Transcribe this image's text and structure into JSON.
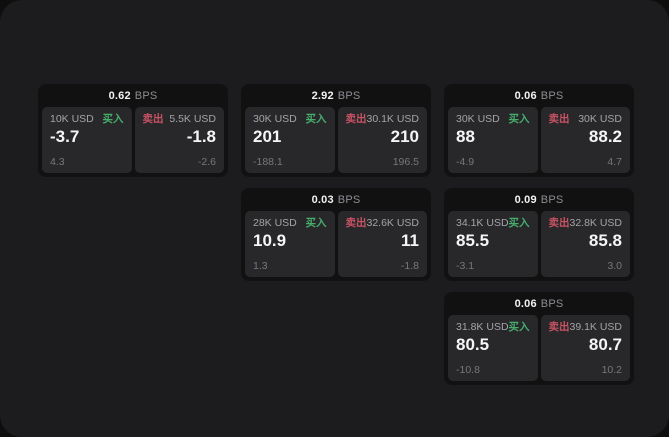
{
  "labels": {
    "bps_unit": "BPS",
    "buy": "买入",
    "sell": "卖出"
  },
  "colors": {
    "surface": "#1c1c1e",
    "card_background": "#111112",
    "panel_background": "#28282a",
    "buy_green": "#46ad6d",
    "sell_red": "#c75264"
  },
  "cards": [
    {
      "bps": "0.62",
      "buy": {
        "size": "10K USD",
        "value": "-3.7",
        "delta": "4.3"
      },
      "sell": {
        "size": "5.5K USD",
        "value": "-1.8",
        "delta": "-2.6"
      }
    },
    {
      "bps": "2.92",
      "buy": {
        "size": "30K USD",
        "value": "201",
        "delta": "-188.1"
      },
      "sell": {
        "size": "30.1K USD",
        "value": "210",
        "delta": "196.5"
      }
    },
    {
      "bps": "0.06",
      "buy": {
        "size": "30K USD",
        "value": "88",
        "delta": "-4.9"
      },
      "sell": {
        "size": "30K USD",
        "value": "88.2",
        "delta": "4.7"
      }
    },
    {
      "bps": "0.03",
      "buy": {
        "size": "28K USD",
        "value": "10.9",
        "delta": "1.3"
      },
      "sell": {
        "size": "32.6K USD",
        "value": "11",
        "delta": "-1.8"
      }
    },
    {
      "bps": "0.09",
      "buy": {
        "size": "34.1K USD",
        "value": "85.5",
        "delta": "-3.1"
      },
      "sell": {
        "size": "32.8K USD",
        "value": "85.8",
        "delta": "3.0"
      }
    },
    {
      "bps": "0.06",
      "buy": {
        "size": "31.8K USD",
        "value": "80.5",
        "delta": "-10.8"
      },
      "sell": {
        "size": "39.1K USD",
        "value": "80.7",
        "delta": "10.2"
      }
    }
  ]
}
